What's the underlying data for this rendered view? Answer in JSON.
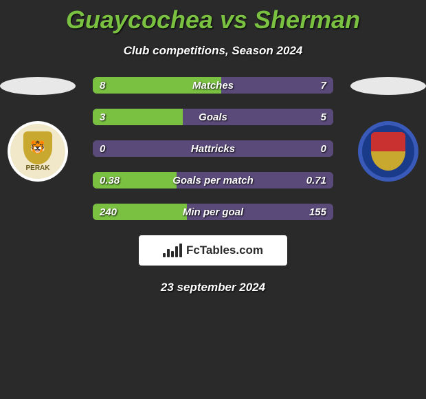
{
  "title": "Guaycochea vs Sherman",
  "subtitle": "Club competitions, Season 2024",
  "date": "23 september 2024",
  "brand": {
    "text": "FcTables.com"
  },
  "colors": {
    "title": "#7ac142",
    "left_fill": "#7ac142",
    "right_fill": "#5a4a7a",
    "track": "#5a4a7a",
    "background": "#2a2a2a",
    "white": "#ffffff"
  },
  "left_badge": {
    "label": "PERAK",
    "bg": "#f0e8c8",
    "shield": "#c9a830"
  },
  "right_badge": {
    "bg": "#1a3a8a",
    "border": "#3a5aba"
  },
  "stats": [
    {
      "label": "Matches",
      "left_val": "8",
      "right_val": "7",
      "left_pct": 53.3,
      "right_pct": 46.7
    },
    {
      "label": "Goals",
      "left_val": "3",
      "right_val": "5",
      "left_pct": 37.5,
      "right_pct": 62.5
    },
    {
      "label": "Hattricks",
      "left_val": "0",
      "right_val": "0",
      "left_pct": 0,
      "right_pct": 0
    },
    {
      "label": "Goals per match",
      "left_val": "0.38",
      "right_val": "0.71",
      "left_pct": 34.9,
      "right_pct": 65.1
    },
    {
      "label": "Min per goal",
      "left_val": "240",
      "right_val": "155",
      "left_pct": 39.2,
      "right_pct": 60.8
    }
  ]
}
